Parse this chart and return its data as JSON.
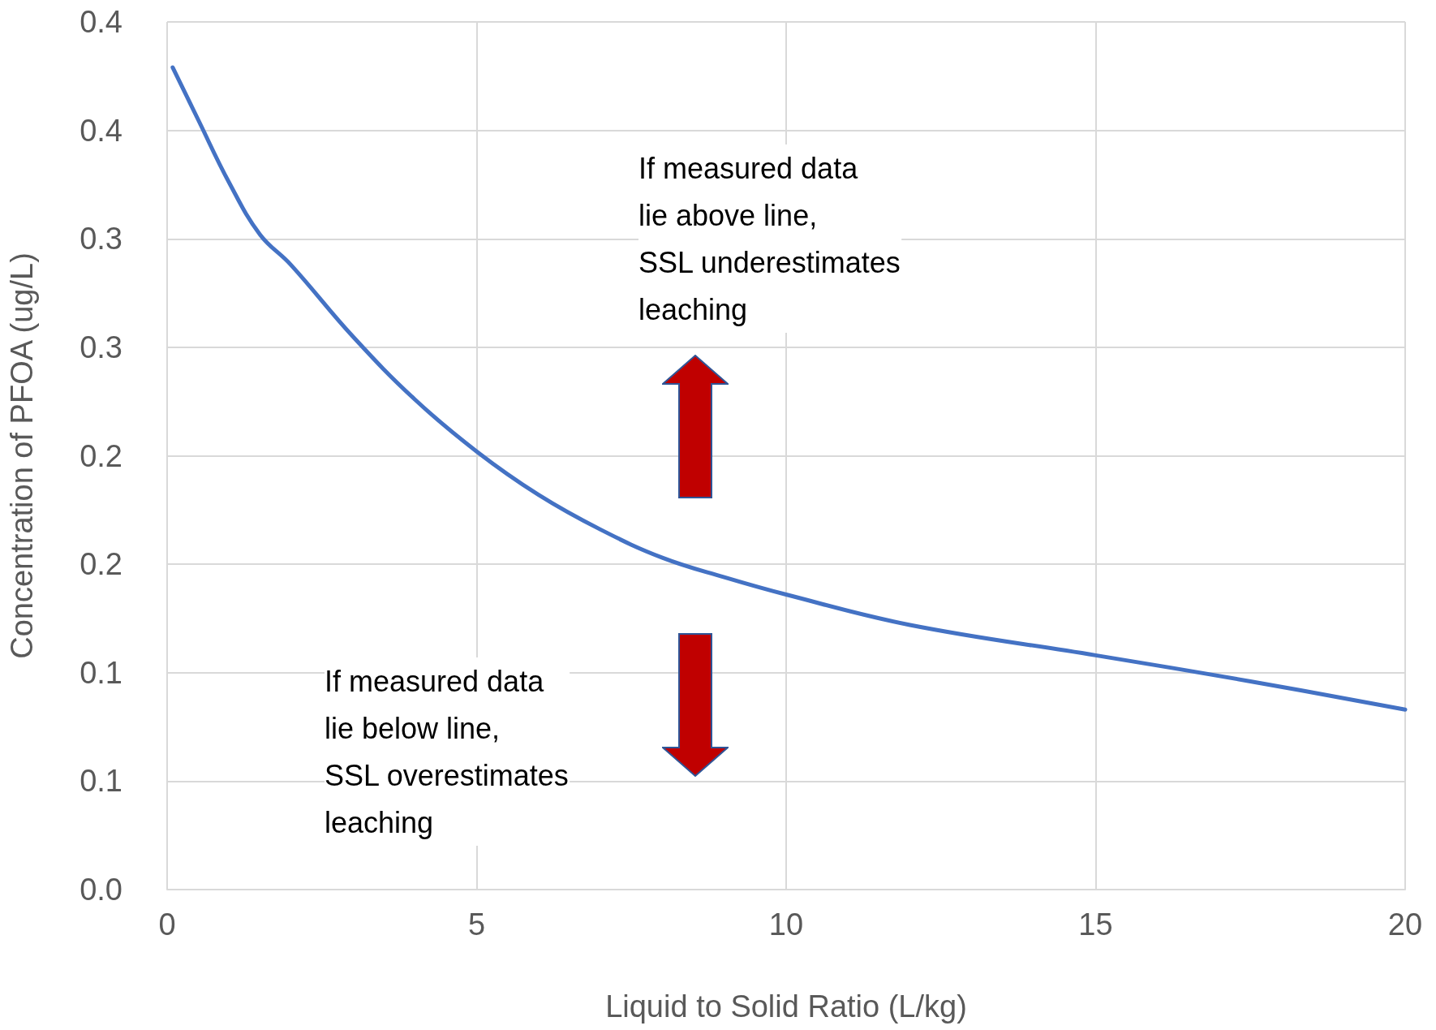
{
  "chart_data": {
    "type": "line",
    "xlabel": "Liquid to Solid Ratio (L/kg)",
    "ylabel": "Concentration of PFOA (ug/L)",
    "series": [
      {
        "color": "#4472c4",
        "x": [
          0.09,
          0.5,
          1,
          1.5,
          2,
          3,
          4,
          5,
          6,
          7,
          8,
          9,
          10,
          12,
          15,
          17.5,
          20
        ],
        "values": [
          0.379,
          0.355,
          0.326,
          0.302,
          0.288,
          0.255,
          0.226,
          0.202,
          0.182,
          0.166,
          0.153,
          0.144,
          0.136,
          0.122,
          0.108,
          0.096,
          0.083
        ]
      }
    ],
    "xlim": [
      0,
      20
    ],
    "xticks": [
      0,
      5,
      10,
      15,
      20
    ],
    "ylim": [
      0,
      0.4
    ],
    "yticks": [
      {
        "value": 0,
        "label": "0.0"
      },
      {
        "value": 0.05,
        "label": "0.1"
      },
      {
        "value": 0.1,
        "label": "0.1"
      },
      {
        "value": 0.15,
        "label": "0.2"
      },
      {
        "value": 0.2,
        "label": "0.2"
      },
      {
        "value": 0.25,
        "label": "0.3"
      },
      {
        "value": 0.3,
        "label": "0.3"
      },
      {
        "value": 0.35,
        "label": "0.4"
      },
      {
        "value": 0.4,
        "label": "0.4"
      }
    ],
    "grid": true,
    "marker": "none",
    "line_style": "solid",
    "annotations": [
      "If measured data\nlie above line,\nSSL underestimates\nleaching",
      "If measured data\nlie below line,\nSSL overestimates\nleaching"
    ]
  }
}
